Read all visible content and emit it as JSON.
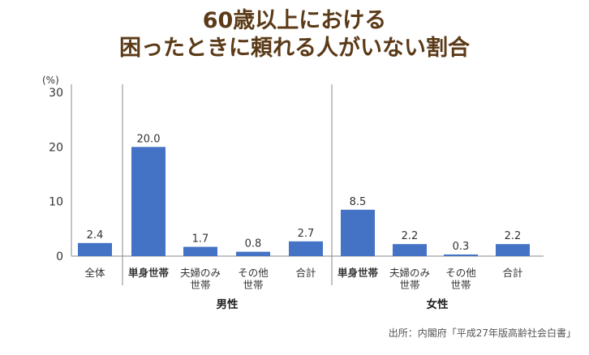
{
  "title": {
    "line1": "60歳以上における",
    "line2": "困ったときに頼れる人がいない割合"
  },
  "source": "出所：内閣府「平成27年版高齢社会白書」",
  "colors": {
    "bar": "#4472c4",
    "axis": "#888888",
    "title": "#5b3a17"
  },
  "chart_data": {
    "type": "bar",
    "unit_label": "(%)",
    "ylim": [
      0,
      30
    ],
    "yticks": [
      "0",
      "10",
      "20",
      "30"
    ],
    "grid": false,
    "categories": [
      {
        "lines": [
          "全体"
        ],
        "bold": false,
        "value": 2.4,
        "label": "2.4"
      },
      {
        "lines": [
          "単身世帯"
        ],
        "bold": true,
        "value": 20.0,
        "label": "20.0"
      },
      {
        "lines": [
          "夫婦のみ",
          "世帯"
        ],
        "bold": false,
        "value": 1.7,
        "label": "1.7"
      },
      {
        "lines": [
          "その他",
          "世帯"
        ],
        "bold": false,
        "value": 0.8,
        "label": "0.8"
      },
      {
        "lines": [
          "合計"
        ],
        "bold": false,
        "value": 2.7,
        "label": "2.7"
      },
      {
        "lines": [
          "単身世帯"
        ],
        "bold": true,
        "value": 8.5,
        "label": "8.5"
      },
      {
        "lines": [
          "夫婦のみ",
          "世帯"
        ],
        "bold": false,
        "value": 2.2,
        "label": "2.2"
      },
      {
        "lines": [
          "その他",
          "世帯"
        ],
        "bold": false,
        "value": 0.3,
        "label": "0.3"
      },
      {
        "lines": [
          "合計"
        ],
        "bold": false,
        "value": 2.2,
        "label": "2.2"
      }
    ],
    "groups": [
      {
        "name": "男性"
      },
      {
        "name": "女性"
      }
    ]
  }
}
